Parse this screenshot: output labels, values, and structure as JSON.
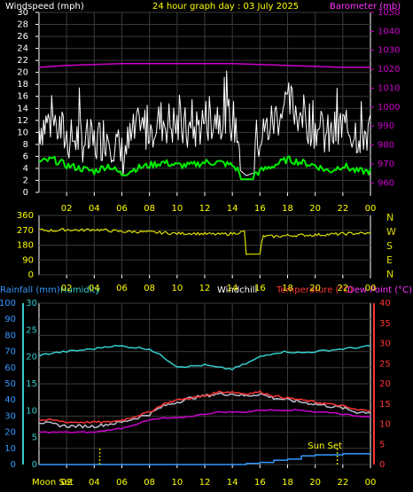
{
  "header": {
    "wind_title": "Windspeed (mph)",
    "day_title": "24 hour graph day : 03 July 2025",
    "baro_title": "Barometer (mb)"
  },
  "lower_header": {
    "rain_title": "Rainfall (mm)",
    "humidity_title": "Humidity",
    "windchill_title": "Windchill",
    "temp_title": "Temperature (°C)",
    "dew_title": "Dew Point (°C)"
  },
  "labels": {
    "moon_set": "Moon Set",
    "sun_set": "Sun Set",
    "compass": [
      "N",
      "W",
      "S",
      "E",
      "N"
    ]
  },
  "colors": {
    "background": "#000000",
    "grid": "#3a3a3a",
    "axis": "#ffffff",
    "wind_gust": "#ffffff",
    "wind_avg": "#00ee00",
    "barometer": "#cc00cc",
    "wind_dir": "#dddd00",
    "title": "#ffff00",
    "rain": "#3399ff",
    "humidity": "#33cccc",
    "temperature": "#ff3333",
    "dewpoint": "#cc00cc",
    "windchill": "#bbbbcc",
    "marker": "#cccc00",
    "compass_text": "#dddd00"
  },
  "chart_data": [
    {
      "type": "line",
      "name": "wind_and_barometer",
      "x_ticks": [
        "02",
        "04",
        "06",
        "08",
        "10",
        "12",
        "14",
        "16",
        "18",
        "20",
        "22",
        "00"
      ],
      "y_left_ticks": [
        0,
        2,
        4,
        6,
        8,
        10,
        12,
        14,
        16,
        18,
        20,
        22,
        24,
        26,
        28,
        30
      ],
      "y_right_ticks": [
        960,
        970,
        980,
        990,
        1000,
        1010,
        1020,
        1030,
        1040,
        1050
      ],
      "ylim": [
        0,
        30
      ],
      "y2lim": [
        955,
        1050
      ],
      "grid": true,
      "series": [
        {
          "key": "gust",
          "axis": "left",
          "x": [
            0,
            1,
            2,
            3,
            4,
            5,
            6,
            7,
            8,
            9,
            10,
            11,
            12,
            13,
            14,
            15,
            16,
            17,
            18,
            19,
            20,
            21,
            22,
            23,
            24
          ],
          "values": [
            11,
            12,
            9,
            9,
            8,
            10,
            6,
            10,
            11,
            12,
            11,
            10,
            12,
            13,
            12,
            7,
            9,
            12,
            15,
            13,
            11,
            9,
            11,
            10,
            10
          ]
        },
        {
          "key": "average",
          "axis": "left",
          "x": [
            0,
            1,
            2,
            3,
            4,
            5,
            6,
            7,
            8,
            9,
            10,
            11,
            12,
            13,
            14,
            15,
            16,
            17,
            18,
            19,
            20,
            21,
            22,
            23,
            24
          ],
          "values": [
            5,
            5.5,
            4.5,
            4,
            3.5,
            4.5,
            3,
            4,
            4.5,
            5,
            4.5,
            4.5,
            5,
            5,
            4.5,
            2.5,
            3.5,
            4.5,
            5.5,
            5,
            4.5,
            3.5,
            4.5,
            3.5,
            3.5
          ]
        },
        {
          "key": "barometer",
          "axis": "right",
          "x": [
            0,
            2,
            4,
            6,
            8,
            10,
            12,
            14,
            16,
            18,
            20,
            22,
            24
          ],
          "values": [
            1021,
            1022,
            1022.5,
            1023,
            1023,
            1023,
            1023,
            1023,
            1022.5,
            1022,
            1021.5,
            1021,
            1021
          ]
        }
      ]
    },
    {
      "type": "line",
      "name": "wind_direction",
      "x_ticks": [
        "02",
        "04",
        "06",
        "08",
        "10",
        "12",
        "14",
        "16",
        "18",
        "20",
        "22",
        "00"
      ],
      "y_left_ticks": [
        0,
        90,
        180,
        270,
        360
      ],
      "ylim": [
        0,
        360
      ],
      "grid": true,
      "series": [
        {
          "key": "direction",
          "x": [
            0,
            1,
            2,
            3,
            4,
            5,
            6,
            7,
            8,
            9,
            10,
            11,
            12,
            13,
            14,
            14.9,
            15,
            16,
            16.2,
            17,
            18,
            19,
            20,
            21,
            22,
            23,
            24
          ],
          "values": [
            272,
            268,
            274,
            270,
            275,
            268,
            262,
            262,
            258,
            255,
            250,
            252,
            248,
            245,
            250,
            262,
            125,
            125,
            235,
            232,
            238,
            240,
            242,
            245,
            248,
            252,
            250
          ]
        }
      ]
    },
    {
      "type": "line",
      "name": "temperature_humidity_rain",
      "x_ticks": [
        "02",
        "04",
        "06",
        "08",
        "10",
        "12",
        "14",
        "16",
        "18",
        "20",
        "22",
        "00"
      ],
      "y_left_ticks": [
        0,
        10,
        20,
        30,
        40,
        50,
        60,
        70,
        80,
        90,
        100
      ],
      "y_mid_ticks": [
        0,
        5,
        10,
        15,
        20,
        25,
        30
      ],
      "y_right_ticks": [
        0,
        5,
        10,
        15,
        20,
        25,
        30,
        35,
        40
      ],
      "ylim": [
        0,
        100
      ],
      "y_mid_lim": [
        0,
        30
      ],
      "y2lim": [
        0,
        40
      ],
      "grid": true,
      "series": [
        {
          "key": "humidity",
          "axis": "left",
          "x": [
            0,
            1,
            2,
            3,
            4,
            5,
            6,
            7,
            8,
            9,
            10,
            11,
            12,
            13,
            14,
            15,
            16,
            17,
            18,
            19,
            20,
            21,
            22,
            23,
            24
          ],
          "values": [
            81,
            83,
            84,
            85,
            86,
            88,
            88,
            87,
            86,
            80,
            73,
            73,
            74,
            72,
            71,
            75,
            80,
            83,
            84,
            83,
            84,
            85,
            86,
            87,
            88
          ]
        },
        {
          "key": "temperature",
          "axis": "right",
          "x": [
            0,
            1,
            2,
            3,
            4,
            5,
            6,
            7,
            8,
            9,
            10,
            11,
            12,
            13,
            14,
            15,
            16,
            17,
            18,
            19,
            20,
            21,
            22,
            23,
            24
          ],
          "values": [
            11,
            11,
            10.5,
            10.5,
            10.5,
            10.5,
            11,
            12,
            13,
            15,
            16,
            16.5,
            17,
            18,
            18,
            17.5,
            18,
            17,
            16.5,
            16,
            15.5,
            15,
            14.5,
            13.5,
            13.5
          ]
        },
        {
          "key": "windchill",
          "axis": "right",
          "x": [
            0,
            1,
            2,
            3,
            4,
            5,
            6,
            7,
            8,
            9,
            10,
            11,
            12,
            13,
            14,
            15,
            16,
            17,
            18,
            19,
            20,
            21,
            22,
            23,
            24
          ],
          "values": [
            10.5,
            10,
            9.5,
            9.5,
            9.5,
            10,
            10.5,
            11.5,
            12.5,
            14.5,
            15.5,
            16.5,
            17,
            17.5,
            17.5,
            17,
            17.5,
            16.5,
            16,
            15.5,
            15,
            14.5,
            14,
            13,
            13
          ]
        },
        {
          "key": "dewpoint",
          "axis": "right",
          "x": [
            0,
            1,
            2,
            3,
            4,
            5,
            6,
            7,
            8,
            9,
            10,
            11,
            12,
            13,
            14,
            15,
            16,
            17,
            18,
            19,
            20,
            21,
            22,
            23,
            24
          ],
          "values": [
            8,
            8,
            8,
            8,
            8,
            8.5,
            9,
            10,
            11,
            11.5,
            11.5,
            12,
            12.5,
            13,
            13,
            13,
            13.5,
            13.5,
            13.5,
            13.5,
            13,
            13,
            12.5,
            12,
            12
          ]
        },
        {
          "key": "rainfall",
          "axis": "mid",
          "x": [
            0,
            14,
            15,
            16,
            17,
            18,
            19,
            20,
            21,
            22,
            23,
            24
          ],
          "values": [
            0,
            0,
            0.2,
            0.4,
            0.8,
            1.0,
            1.6,
            1.8,
            1.8,
            2.0,
            2.0,
            2.0
          ]
        }
      ],
      "annotations": [
        {
          "label": "Moon Set",
          "x": 4.4
        },
        {
          "label": "Sun Set",
          "x": 21.6
        }
      ]
    }
  ]
}
